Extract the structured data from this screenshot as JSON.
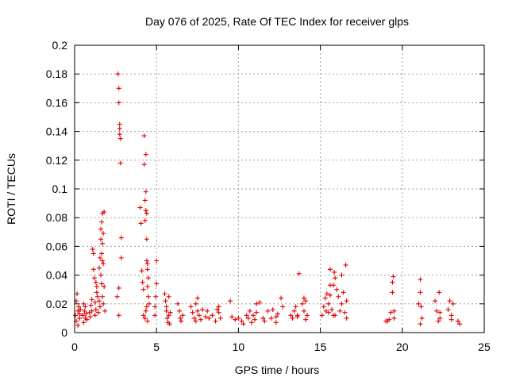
{
  "chart_data": {
    "type": "scatter",
    "title": "Day 076 of 2025, Rate Of TEC Index for receiver glps",
    "xlabel": "GPS time / hours",
    "ylabel": "ROTI / TECUs",
    "xlim": [
      0,
      25
    ],
    "ylim": [
      0,
      0.2
    ],
    "xticks": [
      0,
      5,
      10,
      15,
      20,
      25
    ],
    "xtick_labels": [
      "0",
      "5",
      "10",
      "15",
      "20",
      "25"
    ],
    "yticks": [
      0,
      0.02,
      0.04,
      0.06,
      0.08,
      0.1,
      0.12,
      0.14,
      0.16,
      0.18,
      0.2
    ],
    "ytick_labels": [
      "0",
      "0.02",
      "0.04",
      "0.06",
      "0.08",
      "0.1",
      "0.12",
      "0.14",
      "0.16",
      "0.18",
      "0.2"
    ],
    "grid": true,
    "marker": "+",
    "color": "#e00000",
    "series": [
      {
        "name": "ROTI",
        "x": [
          0.05,
          0.1,
          0.1,
          0.15,
          0.2,
          0.2,
          0.25,
          0.3,
          0.3,
          0.35,
          0.5,
          0.55,
          0.55,
          0.6,
          0.65,
          0.65,
          0.7,
          0.75,
          0.9,
          0.95,
          1.0,
          1.05,
          1.05,
          1.1,
          1.15,
          1.15,
          1.2,
          1.25,
          1.25,
          1.3,
          1.3,
          1.35,
          1.35,
          1.4,
          1.45,
          1.5,
          1.5,
          1.55,
          1.55,
          1.6,
          1.6,
          1.6,
          1.65,
          1.65,
          1.65,
          1.7,
          1.7,
          1.7,
          1.7,
          1.75,
          1.75,
          1.75,
          1.8,
          1.8,
          1.85,
          2.6,
          2.65,
          2.7,
          2.7,
          2.75,
          2.75,
          2.75,
          2.8,
          2.8,
          2.85,
          2.85,
          2.7,
          2.7,
          4.0,
          4.05,
          4.1,
          4.15,
          4.2,
          4.25,
          4.25,
          4.3,
          4.3,
          4.35,
          4.35,
          4.4,
          4.4,
          4.45,
          4.45,
          4.5,
          4.5,
          4.55,
          4.2,
          4.3,
          4.35,
          4.4,
          4.45,
          4.35,
          4.45,
          4.4,
          4.9,
          4.95,
          5.0,
          5.0,
          4.9,
          5.5,
          5.55,
          5.6,
          5.6,
          5.65,
          5.7,
          5.75,
          5.75,
          5.8,
          5.85,
          6.3,
          6.4,
          6.45,
          6.5,
          6.6,
          7.1,
          7.2,
          7.3,
          7.4,
          7.4,
          7.5,
          7.6,
          7.7,
          7.8,
          7.5,
          8.0,
          8.1,
          8.2,
          8.4,
          8.6,
          8.7,
          8.8,
          8.9,
          8.8,
          9.5,
          9.6,
          9.8,
          10.0,
          10.2,
          10.3,
          10.5,
          10.6,
          10.7,
          10.8,
          10.9,
          11.0,
          11.1,
          11.1,
          11.3,
          11.5,
          11.6,
          11.8,
          12.0,
          12.1,
          12.3,
          12.4,
          12.6,
          12.7,
          12.3,
          13.2,
          13.3,
          13.4,
          13.5,
          13.6,
          13.7,
          13.6,
          13.9,
          14.0,
          14.1,
          14.2,
          14.0,
          14.1,
          15.1,
          15.2,
          15.3,
          15.35,
          15.4,
          15.5,
          15.5,
          15.6,
          15.7,
          15.8,
          15.85,
          15.9,
          16.0,
          16.1,
          16.2,
          16.3,
          16.4,
          16.5,
          16.6,
          16.6,
          16.55,
          15.6,
          15.8,
          15.9,
          16.3,
          15.6,
          19.0,
          19.1,
          19.2,
          19.3,
          19.4,
          19.5,
          19.5,
          19.4,
          19.45,
          21.0,
          21.1,
          21.1,
          21.15,
          21.2,
          21.1,
          22.0,
          22.1,
          22.2,
          22.3,
          22.25,
          22.3,
          22.8,
          22.9,
          23.0,
          23.0,
          23.1,
          23.4,
          23.5
        ],
        "y": [
          0.012,
          0.022,
          0.008,
          0.027,
          0.015,
          0.005,
          0.018,
          0.01,
          0.013,
          0.016,
          0.012,
          0.02,
          0.007,
          0.015,
          0.018,
          0.01,
          0.013,
          0.009,
          0.014,
          0.011,
          0.019,
          0.023,
          0.015,
          0.058,
          0.055,
          0.044,
          0.038,
          0.021,
          0.012,
          0.035,
          0.016,
          0.032,
          0.028,
          0.025,
          0.014,
          0.045,
          0.022,
          0.052,
          0.018,
          0.072,
          0.065,
          0.04,
          0.055,
          0.077,
          0.034,
          0.083,
          0.062,
          0.05,
          0.025,
          0.069,
          0.048,
          0.02,
          0.084,
          0.032,
          0.015,
          0.025,
          0.18,
          0.17,
          0.16,
          0.145,
          0.142,
          0.138,
          0.135,
          0.118,
          0.066,
          0.052,
          0.031,
          0.012,
          0.087,
          0.076,
          0.043,
          0.035,
          0.03,
          0.137,
          0.117,
          0.078,
          0.092,
          0.098,
          0.085,
          0.083,
          0.065,
          0.048,
          0.044,
          0.038,
          0.025,
          0.02,
          0.012,
          0.01,
          0.015,
          0.018,
          0.008,
          0.124,
          0.032,
          0.05,
          0.018,
          0.025,
          0.034,
          0.05,
          0.012,
          0.027,
          0.022,
          0.018,
          0.015,
          0.01,
          0.007,
          0.025,
          0.012,
          0.006,
          0.014,
          0.02,
          0.015,
          0.01,
          0.008,
          0.012,
          0.018,
          0.014,
          0.01,
          0.008,
          0.02,
          0.015,
          0.012,
          0.009,
          0.016,
          0.024,
          0.011,
          0.015,
          0.01,
          0.012,
          0.008,
          0.016,
          0.018,
          0.01,
          0.014,
          0.022,
          0.011,
          0.009,
          0.01,
          0.008,
          0.006,
          0.012,
          0.01,
          0.015,
          0.007,
          0.012,
          0.009,
          0.02,
          0.014,
          0.021,
          0.01,
          0.008,
          0.015,
          0.01,
          0.016,
          0.011,
          0.013,
          0.024,
          0.018,
          0.007,
          0.012,
          0.01,
          0.015,
          0.018,
          0.012,
          0.041,
          0.011,
          0.02,
          0.024,
          0.022,
          0.012,
          0.015,
          0.009,
          0.012,
          0.018,
          0.024,
          0.015,
          0.027,
          0.02,
          0.014,
          0.026,
          0.016,
          0.012,
          0.042,
          0.038,
          0.03,
          0.025,
          0.015,
          0.02,
          0.028,
          0.014,
          0.022,
          0.01,
          0.047,
          0.044,
          0.033,
          0.012,
          0.04,
          0.033,
          0.008,
          0.008,
          0.009,
          0.014,
          0.028,
          0.015,
          0.01,
          0.035,
          0.039,
          0.02,
          0.037,
          0.028,
          0.018,
          0.01,
          0.006,
          0.022,
          0.015,
          0.008,
          0.01,
          0.028,
          0.014,
          0.016,
          0.022,
          0.012,
          0.009,
          0.02,
          0.008,
          0.006
        ]
      }
    ]
  }
}
